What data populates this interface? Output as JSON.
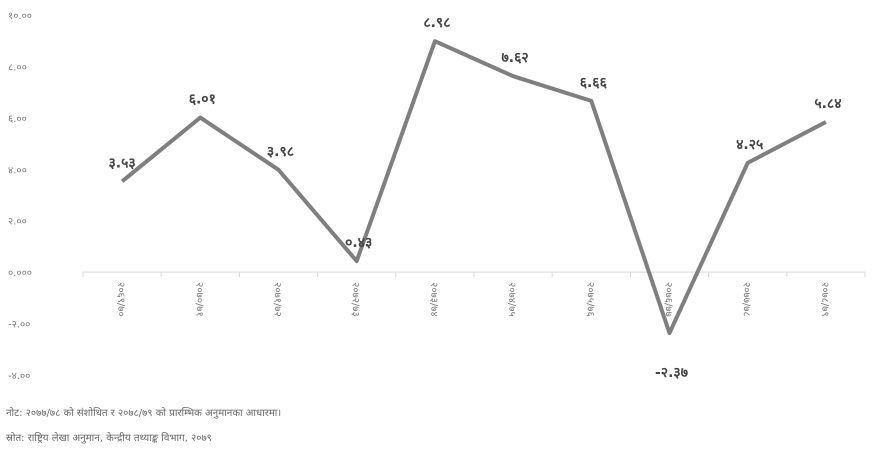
{
  "chart_data": {
    "type": "line",
    "categories": [
      "२०६९/७०",
      "२०७०/७१",
      "२०७१/७२",
      "२०७२/७३",
      "२०७३/७४",
      "२०७४/७५",
      "२०७५/७६",
      "२०७६/७७",
      "२०७७/७८",
      "२०७८/७९"
    ],
    "values": [
      3.53,
      6.01,
      3.98,
      0.43,
      8.98,
      7.62,
      6.66,
      -2.37,
      4.25,
      5.84
    ],
    "data_labels": [
      "३.५३",
      "६.०१",
      "३.९८",
      "०.४३",
      "८.९८",
      "७.६२",
      "६.६६",
      "-२.३७",
      "४.२५",
      "५.८४"
    ],
    "y_ticks": [
      10,
      8,
      6,
      4,
      2,
      0,
      -2,
      -4
    ],
    "y_tick_labels": [
      "१०.००",
      "८.००",
      "६.००",
      "४.००",
      "२.००",
      "०.०००",
      "-२.००",
      "-४.००"
    ],
    "ylim": [
      -4,
      10
    ],
    "title": "",
    "xlabel": "",
    "ylabel": "",
    "grid": false,
    "legend": "none",
    "line_color": "#7f7f7f",
    "axis_color": "#d9d9d9"
  },
  "notes": {
    "note_text": "नोट: २०७७/७८ को संशोधित र २०७८/७९ को प्रारम्भिक अनुमानका आधारमा।",
    "source_text": "स्रोत: राष्ट्रिय लेखा अनुमान, केन्द्रीय तथ्याङ्क विभाग, २०७९"
  }
}
